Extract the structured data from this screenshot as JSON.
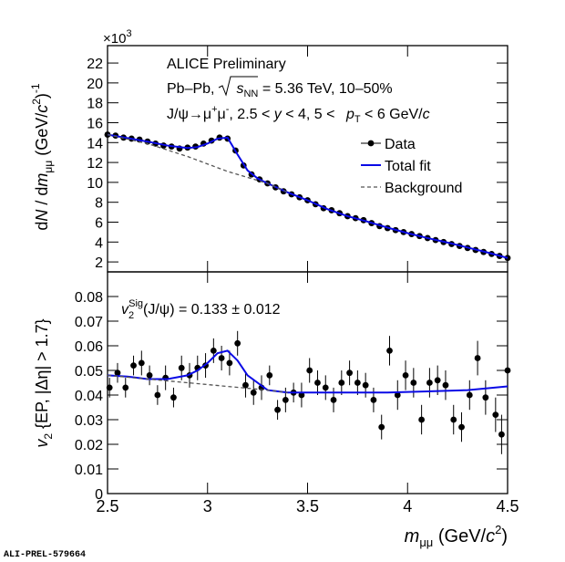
{
  "footer": "ALI-PREL-579664",
  "chart_data": [
    {
      "type": "scatter",
      "label": "ALICE Preliminary",
      "system": [
        "Pb–Pb,",
        "s",
        "NN",
        " = 5.36 TeV, 10–50%"
      ],
      "selection": [
        "J/ψ→μ",
        "+",
        "μ",
        "-",
        ", 2.5 < ",
        "y",
        " < 4, 5 < ",
        "p",
        "T",
        " < 6 GeV/",
        "c"
      ],
      "ylabel": [
        "d",
        "N",
        " / d",
        "m",
        "μμ",
        " (GeV/",
        "c",
        "2",
        ")",
        "-1"
      ],
      "y_multiplier": [
        "×10",
        "3"
      ],
      "xlim": [
        2.5,
        4.5
      ],
      "xticks": [
        2.5,
        3,
        3.5,
        4,
        4.5
      ],
      "xtick_labels": false,
      "ylim": [
        1,
        23.75
      ],
      "yticks": [
        2,
        4,
        6,
        8,
        10,
        12,
        14,
        16,
        18,
        20,
        22
      ],
      "legend": true,
      "series": [
        {
          "name": "Data",
          "style": "markers",
          "color": "#000000",
          "x": [
            2.5,
            2.54,
            2.58,
            2.62,
            2.66,
            2.7,
            2.74,
            2.78,
            2.82,
            2.86,
            2.9,
            2.94,
            2.98,
            3.02,
            3.06,
            3.1,
            3.14,
            3.18,
            3.22,
            3.26,
            3.3,
            3.34,
            3.38,
            3.42,
            3.46,
            3.5,
            3.54,
            3.58,
            3.62,
            3.66,
            3.7,
            3.74,
            3.78,
            3.82,
            3.86,
            3.9,
            3.94,
            3.98,
            4.02,
            4.06,
            4.1,
            4.14,
            4.18,
            4.22,
            4.26,
            4.3,
            4.34,
            4.38,
            4.42,
            4.46,
            4.5
          ],
          "values": [
            14.8,
            14.7,
            14.5,
            14.4,
            14.3,
            14.1,
            13.9,
            13.7,
            13.6,
            13.4,
            13.5,
            13.6,
            13.9,
            14.2,
            14.5,
            14.4,
            13.2,
            11.7,
            10.8,
            10.3,
            9.9,
            9.5,
            9.1,
            8.8,
            8.5,
            8.2,
            7.8,
            7.4,
            7.2,
            6.9,
            6.6,
            6.4,
            6.2,
            5.9,
            5.6,
            5.4,
            5.2,
            5.0,
            4.8,
            4.6,
            4.4,
            4.2,
            4.0,
            3.8,
            3.6,
            3.4,
            3.2,
            3.0,
            2.8,
            2.6,
            2.4
          ]
        },
        {
          "name": "Total fit",
          "style": "line",
          "color": "#0a0ae6",
          "x": [
            2.5,
            2.6,
            2.7,
            2.8,
            2.9,
            2.95,
            3.0,
            3.05,
            3.1,
            3.15,
            3.2,
            3.25,
            3.3,
            3.4,
            3.5,
            3.6,
            3.7,
            3.8,
            3.9,
            4.0,
            4.1,
            4.2,
            4.3,
            4.4,
            4.5
          ],
          "values": [
            14.8,
            14.45,
            14.1,
            13.7,
            13.45,
            13.55,
            13.9,
            14.4,
            14.5,
            12.8,
            11.2,
            10.4,
            9.9,
            9.0,
            8.2,
            7.3,
            6.6,
            6.05,
            5.45,
            4.9,
            4.4,
            3.95,
            3.45,
            2.95,
            2.4
          ]
        },
        {
          "name": "Background",
          "style": "dashed",
          "color": "#555555",
          "x": [
            2.5,
            2.7,
            2.9,
            3.1,
            3.3,
            3.4
          ],
          "values": [
            14.8,
            13.9,
            12.6,
            11.1,
            9.9,
            9.0
          ]
        }
      ]
    },
    {
      "type": "scatter",
      "annotation": [
        "v",
        "2",
        "Sig",
        "(J/ψ) = 0.133 ± 0.012"
      ],
      "ylabel": [
        "v",
        "2",
        " {EP, |Δη| > 1.7}"
      ],
      "xlabel": [
        "m",
        "μμ",
        " (GeV/",
        "c",
        "2",
        ")"
      ],
      "xlim": [
        2.5,
        4.5
      ],
      "xticks": [
        2.5,
        3,
        3.5,
        4,
        4.5
      ],
      "ylim": [
        0,
        0.09
      ],
      "yticks": [
        0,
        0.01,
        0.02,
        0.03,
        0.04,
        0.05,
        0.06,
        0.07,
        0.08
      ],
      "legend": false,
      "series": [
        {
          "style": "markers",
          "color": "#000000",
          "x": [
            2.51,
            2.55,
            2.59,
            2.63,
            2.67,
            2.71,
            2.75,
            2.79,
            2.83,
            2.87,
            2.91,
            2.95,
            2.99,
            3.03,
            3.07,
            3.11,
            3.15,
            3.19,
            3.23,
            3.27,
            3.31,
            3.35,
            3.39,
            3.43,
            3.47,
            3.51,
            3.55,
            3.59,
            3.63,
            3.67,
            3.71,
            3.75,
            3.79,
            3.83,
            3.87,
            3.91,
            3.95,
            3.99,
            4.03,
            4.07,
            4.11,
            4.15,
            4.19,
            4.23,
            4.27,
            4.31,
            4.35,
            4.39,
            4.44,
            4.47,
            4.5
          ],
          "values": [
            0.043,
            0.049,
            0.043,
            0.052,
            0.053,
            0.048,
            0.04,
            0.047,
            0.039,
            0.051,
            0.048,
            0.051,
            0.052,
            0.058,
            0.055,
            0.053,
            0.061,
            0.044,
            0.041,
            0.043,
            0.048,
            0.034,
            0.038,
            0.041,
            0.04,
            0.05,
            0.045,
            0.043,
            0.038,
            0.045,
            0.049,
            0.045,
            0.044,
            0.038,
            0.027,
            0.058,
            0.04,
            0.048,
            0.045,
            0.03,
            0.045,
            0.046,
            0.044,
            0.03,
            0.027,
            0.04,
            0.055,
            0.039,
            0.032,
            0.024,
            0.05
          ],
          "errors": [
            0.004,
            0.004,
            0.004,
            0.004,
            0.005,
            0.004,
            0.004,
            0.005,
            0.004,
            0.005,
            0.005,
            0.005,
            0.005,
            0.005,
            0.005,
            0.005,
            0.005,
            0.005,
            0.005,
            0.005,
            0.004,
            0.004,
            0.005,
            0.004,
            0.005,
            0.005,
            0.005,
            0.005,
            0.005,
            0.005,
            0.005,
            0.005,
            0.005,
            0.005,
            0.005,
            0.006,
            0.006,
            0.006,
            0.006,
            0.006,
            0.006,
            0.006,
            0.006,
            0.006,
            0.006,
            0.006,
            0.007,
            0.007,
            0.007,
            0.008,
            0.007
          ]
        },
        {
          "style": "line",
          "color": "#0a0ae6",
          "x": [
            2.5,
            2.6,
            2.7,
            2.8,
            2.9,
            2.95,
            3.0,
            3.05,
            3.1,
            3.15,
            3.2,
            3.3,
            3.4,
            3.5,
            3.7,
            3.9,
            4.1,
            4.3,
            4.5
          ],
          "values": [
            0.048,
            0.0475,
            0.0465,
            0.0465,
            0.048,
            0.05,
            0.053,
            0.057,
            0.058,
            0.054,
            0.048,
            0.042,
            0.041,
            0.041,
            0.041,
            0.041,
            0.0415,
            0.042,
            0.0435
          ]
        },
        {
          "style": "dashed",
          "color": "#555555",
          "x": [
            2.5,
            2.7,
            2.9,
            3.1,
            3.3,
            3.4
          ],
          "values": [
            0.048,
            0.0465,
            0.045,
            0.0435,
            0.042,
            0.041
          ]
        }
      ]
    }
  ]
}
